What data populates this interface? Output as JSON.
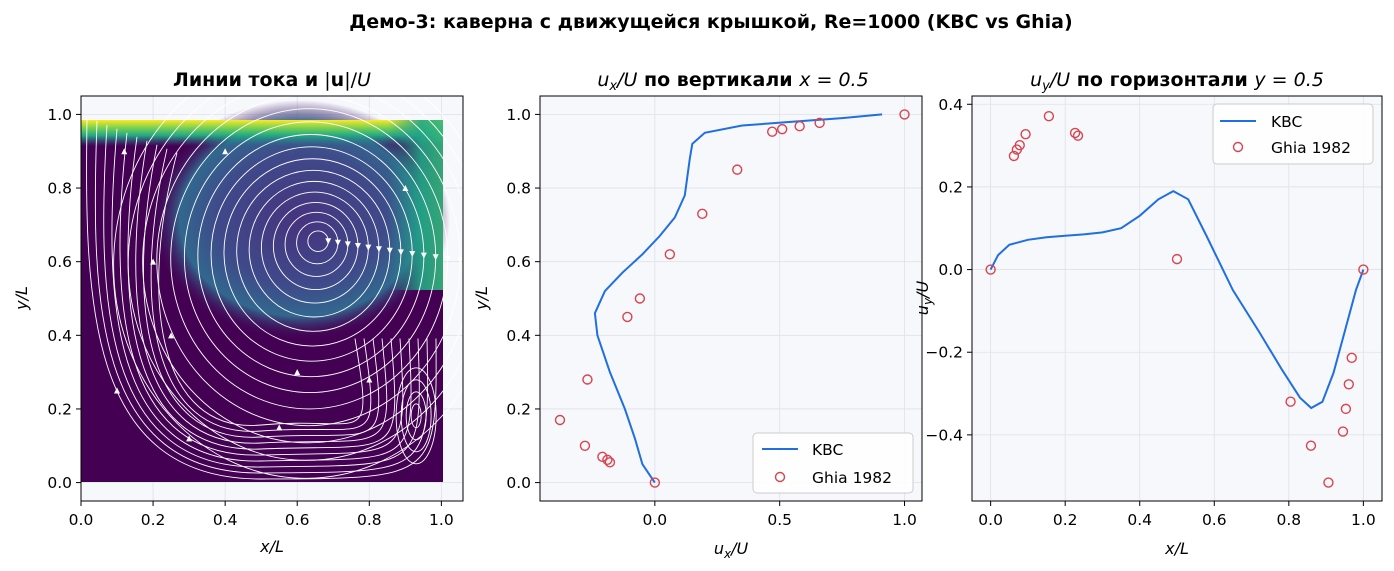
{
  "figure": {
    "suptitle": "Демо-3: каверна с движущейся крышкой, Re=1000 (KBC vs Ghia)"
  },
  "colors": {
    "kbc": "#1f6fe0",
    "ghia": "#d9434e",
    "panel_bg": "#f7f8fc",
    "grid": "#dfe1e8",
    "viridis_low": "#440154",
    "viridis_mid": "#21918c",
    "viridis_high": "#fde725",
    "streamline": "#ffffff"
  },
  "chart_data": [
    {
      "type": "heatmap",
      "id": "streamlines",
      "title_bold": "Линии тока и",
      "title_math": "|u|/U",
      "title_u": "u",
      "title_rest": "|/",
      "title_U": "U",
      "xlabel": "x/L",
      "ylabel": "y/L",
      "xlim": [
        0.0,
        1.06
      ],
      "ylim": [
        -0.05,
        1.05
      ],
      "xticks": [
        0.0,
        0.2,
        0.4,
        0.6,
        0.8,
        1.0
      ],
      "yticks": [
        0.0,
        0.2,
        0.4,
        0.6,
        0.8,
        1.0
      ],
      "tick_labels": [
        "0.0",
        "0.2",
        "0.4",
        "0.6",
        "0.8",
        "1.0"
      ],
      "colormap": "viridis",
      "vortex_center": [
        0.66,
        0.66
      ],
      "grid": true
    },
    {
      "type": "line",
      "id": "ux_profile",
      "title_var": "u",
      "title_sub": "x",
      "title_U": "/U",
      "title_bold": " по вертикали ",
      "title_eq": "x = 0.5",
      "xlabel": "u",
      "xlabel_sub": "x",
      "xlabel_rest": "/U",
      "ylabel": "y/L",
      "xlim": [
        -0.46,
        1.07
      ],
      "ylim": [
        -0.05,
        1.05
      ],
      "xticks": [
        0.0,
        0.5,
        1.0
      ],
      "xtick_labels": [
        "0.0",
        "0.5",
        "1.0"
      ],
      "yticks": [
        0.0,
        0.2,
        0.4,
        0.6,
        0.8,
        1.0
      ],
      "ytick_labels": [
        "0.0",
        "0.2",
        "0.4",
        "0.6",
        "0.8",
        "1.0"
      ],
      "legend_position": "bottom-right",
      "grid": true,
      "series": [
        {
          "name": "KBC",
          "kind": "line",
          "x": [
            0.0,
            -0.05,
            -0.08,
            -0.12,
            -0.18,
            -0.23,
            -0.24,
            -0.2,
            -0.13,
            -0.05,
            0.02,
            0.08,
            0.12,
            0.13,
            0.14,
            0.15,
            0.2,
            0.35,
            0.55,
            0.75,
            0.91
          ],
          "y": [
            0.0,
            0.05,
            0.12,
            0.2,
            0.3,
            0.4,
            0.46,
            0.52,
            0.57,
            0.62,
            0.67,
            0.72,
            0.78,
            0.83,
            0.88,
            0.92,
            0.95,
            0.97,
            0.98,
            0.99,
            1.0
          ]
        },
        {
          "name": "Ghia 1982",
          "kind": "scatter",
          "x": [
            0.0,
            -0.18,
            -0.19,
            -0.21,
            -0.28,
            -0.38,
            -0.27,
            -0.11,
            -0.06,
            0.06,
            0.19,
            0.33,
            0.47,
            0.51,
            0.58,
            0.66,
            1.0
          ],
          "y": [
            0.0,
            0.055,
            0.062,
            0.07,
            0.1,
            0.17,
            0.28,
            0.45,
            0.5,
            0.62,
            0.73,
            0.85,
            0.953,
            0.96,
            0.968,
            0.977,
            1.0
          ]
        }
      ]
    },
    {
      "type": "line",
      "id": "uy_profile",
      "title_var": "u",
      "title_sub": "y",
      "title_U": "/U",
      "title_bold": " по горизонтали ",
      "title_eq": "y = 0.5",
      "xlabel": "x/L",
      "ylabel": "u",
      "ylabel_sub": "y",
      "ylabel_rest": "/U",
      "xlim": [
        -0.05,
        1.05
      ],
      "ylim": [
        -0.56,
        0.42
      ],
      "xticks": [
        0.0,
        0.2,
        0.4,
        0.6,
        0.8,
        1.0
      ],
      "xtick_labels": [
        "0.0",
        "0.2",
        "0.4",
        "0.6",
        "0.8",
        "1.0"
      ],
      "yticks": [
        -0.4,
        -0.2,
        0.0,
        0.2,
        0.4
      ],
      "ytick_labels": [
        "−0.4",
        "−0.2",
        "0.0",
        "0.2",
        "0.4"
      ],
      "legend_position": "top-right",
      "grid": true,
      "series": [
        {
          "name": "KBC",
          "kind": "line",
          "x": [
            0.0,
            0.02,
            0.05,
            0.1,
            0.15,
            0.2,
            0.25,
            0.3,
            0.35,
            0.4,
            0.45,
            0.49,
            0.53,
            0.58,
            0.65,
            0.72,
            0.78,
            0.83,
            0.86,
            0.89,
            0.92,
            0.95,
            0.98,
            1.0
          ],
          "y": [
            0.0,
            0.035,
            0.06,
            0.072,
            0.078,
            0.082,
            0.085,
            0.09,
            0.1,
            0.13,
            0.17,
            0.19,
            0.17,
            0.08,
            -0.05,
            -0.15,
            -0.24,
            -0.31,
            -0.335,
            -0.32,
            -0.25,
            -0.15,
            -0.05,
            0.0
          ]
        },
        {
          "name": "Ghia 1982",
          "kind": "scatter",
          "x": [
            0.0,
            0.0625,
            0.0703,
            0.0781,
            0.0938,
            0.1563,
            0.2266,
            0.2344,
            0.5,
            0.8047,
            0.8594,
            0.9063,
            0.9453,
            0.9531,
            0.9609,
            0.9688,
            1.0
          ],
          "y": [
            0.0,
            0.2749,
            0.2903,
            0.3009,
            0.3275,
            0.3712,
            0.3305,
            0.3239,
            0.0253,
            -0.3197,
            -0.4262,
            -0.5155,
            -0.3919,
            -0.3371,
            -0.2776,
            -0.2136,
            0.0
          ]
        }
      ]
    }
  ]
}
